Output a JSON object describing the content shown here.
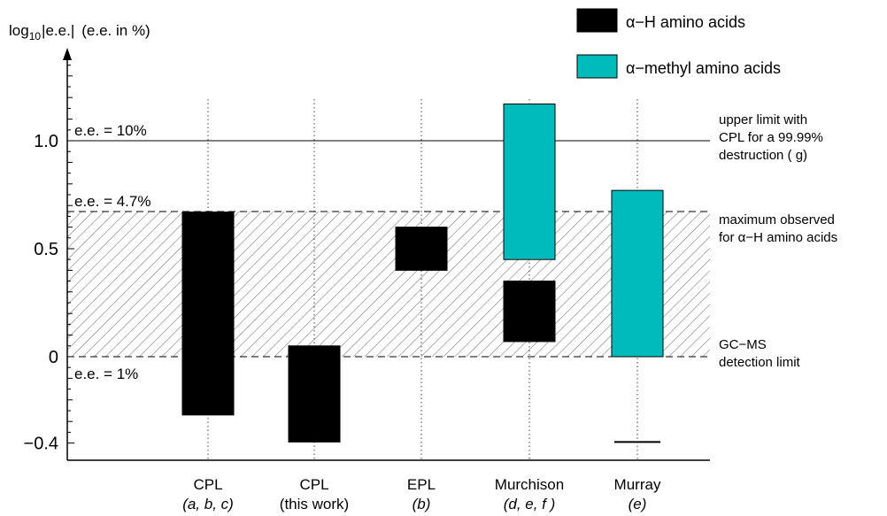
{
  "chart_data": {
    "type": "bar",
    "ylabel": {
      "prefix": "log",
      "sub": "10",
      "abs": "e.e.",
      "suffix": "(e.e. in %)"
    },
    "ylim": [
      -0.43,
      1.37
    ],
    "yticks": [
      {
        "value": -0.4,
        "label": "−0.4"
      },
      {
        "value": 0,
        "label": "0"
      },
      {
        "value": 0.5,
        "label": "0.5"
      },
      {
        "value": 1.0,
        "label": "1.0"
      }
    ],
    "categories": [
      {
        "line1": "CPL",
        "line2": "(a, b, c)"
      },
      {
        "line1": "CPL",
        "line2": "(this work)"
      },
      {
        "line1": "EPL",
        "line2": "(b)"
      },
      {
        "line1": "Murchison",
        "line2": "(d, e, f )"
      },
      {
        "line1": "Murray",
        "line2": "(e)"
      }
    ],
    "series": [
      {
        "name": "α−H amino acids",
        "color": "#000000",
        "bars": [
          {
            "category": 0,
            "low": -0.27,
            "high": 0.67
          },
          {
            "category": 1,
            "low": -0.395,
            "high": 0.05
          },
          {
            "category": 2,
            "low": 0.4,
            "high": 0.6
          },
          {
            "category": 3,
            "low": 0.07,
            "high": 0.35
          }
        ]
      },
      {
        "name": "α−methyl amino acids",
        "color": "#00bbbb",
        "bars": [
          {
            "category": 3,
            "low": 0.45,
            "high": 1.17
          },
          {
            "category": 4,
            "low": 0.0,
            "high": 0.77
          }
        ]
      }
    ],
    "reference_lines": [
      {
        "value": 1.0,
        "style": "solid",
        "label": "e.e. = 10%",
        "right_note": [
          "upper limit with",
          "CPL for a 99.99%",
          "destruction ( g)"
        ]
      },
      {
        "value": 0.672,
        "style": "dashed",
        "label": "e.e. = 4.7%",
        "right_note": [
          "maximum observed",
          "for α−H amino acids"
        ]
      },
      {
        "value": 0.0,
        "style": "dashed",
        "label": "e.e. = 1%",
        "right_note": [
          "GC−MS",
          "detection limit"
        ]
      }
    ],
    "hatched_region": [
      0.0,
      0.672
    ],
    "marker_lines": [
      {
        "category": 4,
        "value": -0.395
      }
    ],
    "legend_position": "top-right",
    "grid": "dotted vertical lines at categories"
  }
}
